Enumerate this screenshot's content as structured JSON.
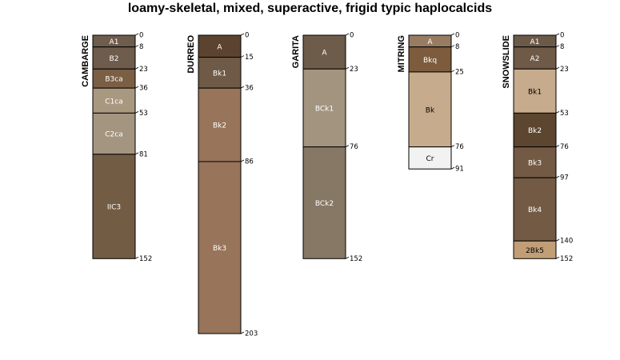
{
  "title": "loamy-skeletal, mixed, superactive, frigid typic haplocalcids",
  "chart_data": {
    "type": "soil-profile-sketch",
    "depth_unit": "cm",
    "depth_max": 203,
    "profiles": [
      {
        "name": "CAMBARGE",
        "horizons": [
          {
            "name": "A1",
            "top": 0,
            "bottom": 8,
            "color": "#6e5c4c",
            "text_color": "#ffffff"
          },
          {
            "name": "B2",
            "top": 8,
            "bottom": 23,
            "color": "#6e5c4c",
            "text_color": "#ffffff"
          },
          {
            "name": "B3ca",
            "top": 23,
            "bottom": 36,
            "color": "#7a5f45",
            "text_color": "#ffffff"
          },
          {
            "name": "C1ca",
            "top": 36,
            "bottom": 53,
            "color": "#a8987f",
            "text_color": "#ffffff"
          },
          {
            "name": "C2ca",
            "top": 53,
            "bottom": 81,
            "color": "#a39580",
            "text_color": "#ffffff"
          },
          {
            "name": "IIC3",
            "top": 81,
            "bottom": 152,
            "color": "#735c44",
            "text_color": "#ffffff"
          }
        ]
      },
      {
        "name": "DURREO",
        "horizons": [
          {
            "name": "A",
            "top": 0,
            "bottom": 15,
            "color": "#5c4330",
            "text_color": "#ffffff"
          },
          {
            "name": "Bk1",
            "top": 15,
            "bottom": 36,
            "color": "#6e5a46",
            "text_color": "#ffffff"
          },
          {
            "name": "Bk2",
            "top": 36,
            "bottom": 86,
            "color": "#98745a",
            "text_color": "#ffffff"
          },
          {
            "name": "Bk3",
            "top": 86,
            "bottom": 203,
            "color": "#98745a",
            "text_color": "#ffffff"
          }
        ]
      },
      {
        "name": "GARITA",
        "horizons": [
          {
            "name": "A",
            "top": 0,
            "bottom": 23,
            "color": "#6e5c4b",
            "text_color": "#ffffff"
          },
          {
            "name": "BCk1",
            "top": 23,
            "bottom": 76,
            "color": "#a39480",
            "text_color": "#ffffff"
          },
          {
            "name": "BCk2",
            "top": 76,
            "bottom": 152,
            "color": "#877765",
            "text_color": "#ffffff"
          }
        ]
      },
      {
        "name": "MITRING",
        "horizons": [
          {
            "name": "A",
            "top": 0,
            "bottom": 8,
            "color": "#987c62",
            "text_color": "#ffffff"
          },
          {
            "name": "Bkq",
            "top": 8,
            "bottom": 25,
            "color": "#7c5c3c",
            "text_color": "#ffffff"
          },
          {
            "name": "Bk",
            "top": 25,
            "bottom": 76,
            "color": "#c6ab8c",
            "text_color": "#000000"
          },
          {
            "name": "Cr",
            "top": 76,
            "bottom": 91,
            "color": "#f2f2f2",
            "text_color": "#000000"
          }
        ]
      },
      {
        "name": "SNOWSLIDE",
        "horizons": [
          {
            "name": "A1",
            "top": 0,
            "bottom": 8,
            "color": "#6c5a49",
            "text_color": "#ffffff"
          },
          {
            "name": "A2",
            "top": 8,
            "bottom": 23,
            "color": "#6e5a46",
            "text_color": "#ffffff"
          },
          {
            "name": "Bk1",
            "top": 23,
            "bottom": 53,
            "color": "#c6ab8c",
            "text_color": "#000000"
          },
          {
            "name": "Bk2",
            "top": 53,
            "bottom": 76,
            "color": "#5c4630",
            "text_color": "#ffffff"
          },
          {
            "name": "Bk3",
            "top": 76,
            "bottom": 97,
            "color": "#735a44",
            "text_color": "#ffffff"
          },
          {
            "name": "Bk4",
            "top": 97,
            "bottom": 140,
            "color": "#735a44",
            "text_color": "#ffffff"
          },
          {
            "name": "2Bk5",
            "top": 140,
            "bottom": 152,
            "color": "#c29e76",
            "text_color": "#000000"
          }
        ]
      }
    ]
  }
}
